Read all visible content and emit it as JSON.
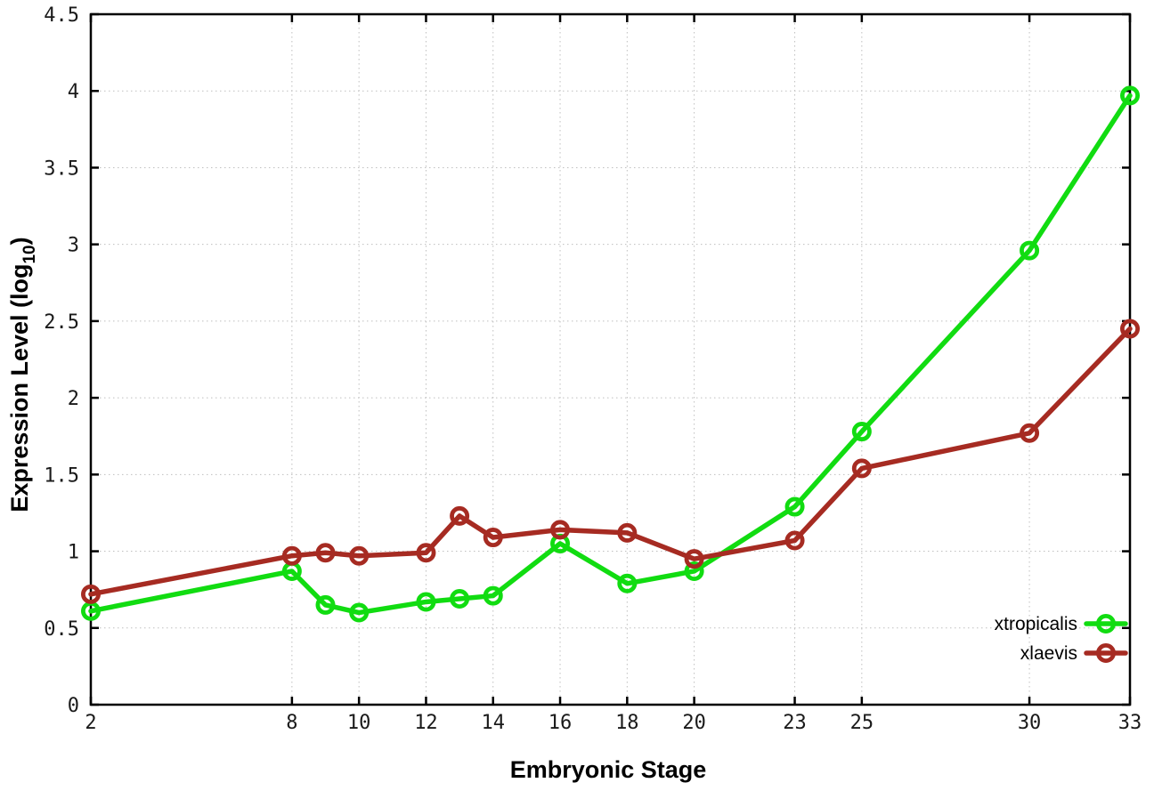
{
  "chart_data": {
    "type": "line",
    "title": "",
    "xlabel": "Embryonic Stage",
    "ylabel": "Expression Level (log10)",
    "ylabel_parts": {
      "main": "Expression Level (log",
      "sub": "10",
      "end": ")"
    },
    "xlim": [
      2,
      33
    ],
    "ylim": [
      0,
      4.5
    ],
    "x_ticks": [
      2,
      8,
      10,
      12,
      14,
      16,
      18,
      20,
      23,
      25,
      30,
      33
    ],
    "y_ticks": [
      0,
      0.5,
      1,
      1.5,
      2,
      2.5,
      3,
      3.5,
      4,
      4.5
    ],
    "grid": true,
    "legend_position": "inside-bottom-right",
    "x": [
      2,
      8,
      9,
      10,
      12,
      13,
      14,
      16,
      18,
      20,
      23,
      25,
      30,
      33
    ],
    "series": [
      {
        "name": "xtropicalis",
        "color": "#11dc11",
        "marker": "open-circle",
        "values": [
          0.61,
          0.87,
          0.65,
          0.6,
          0.67,
          0.69,
          0.71,
          1.05,
          0.79,
          0.87,
          1.29,
          1.78,
          2.96,
          3.97
        ]
      },
      {
        "name": "xlaevis",
        "color": "#a62b22",
        "marker": "open-circle",
        "values": [
          0.72,
          0.97,
          0.99,
          0.97,
          0.99,
          1.23,
          1.09,
          1.14,
          1.12,
          0.95,
          1.07,
          1.54,
          1.77,
          2.45
        ]
      }
    ],
    "colors": {
      "background": "#ffffff",
      "grid": "#bfbfbf",
      "axis": "#000000",
      "tick_label": "#1a1a1a"
    }
  }
}
